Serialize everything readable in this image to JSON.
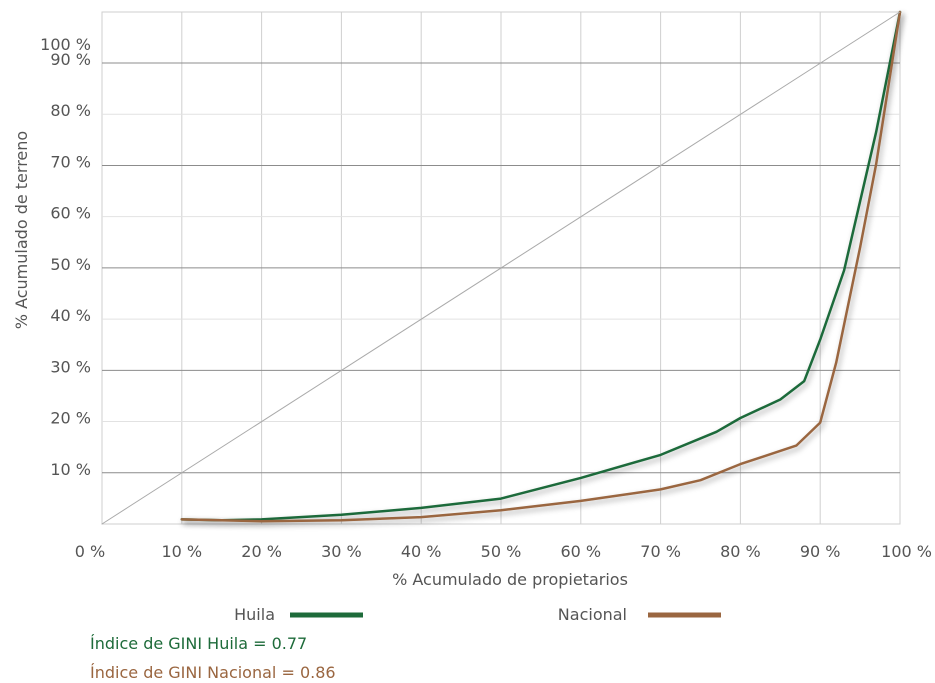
{
  "chart_data": {
    "type": "line",
    "xlabel": "% Acumulado de propietarios",
    "ylabel": "% Acumulado de terreno",
    "x_ticks": [
      "0 %",
      "10 %",
      "20 %",
      "30 %",
      "40 %",
      "50 %",
      "60 %",
      "70 %",
      "80 %",
      "90 %",
      "100 %"
    ],
    "y_ticks": [
      "10 %",
      "20 %",
      "30 %",
      "40 %",
      "50 %",
      "60 %",
      "70 %",
      "80 %",
      "90 %",
      "100 %"
    ],
    "xlim": [
      0,
      100
    ],
    "ylim": [
      0,
      100
    ],
    "grid": true,
    "legend_position": "bottom",
    "series": [
      {
        "name": "Huila",
        "color": "#1e6b3a",
        "x": [
          10,
          15,
          20,
          30,
          40,
          50,
          60,
          70,
          77,
          80,
          85,
          88,
          90,
          93,
          95,
          97,
          100
        ],
        "y": [
          1,
          0.8,
          1,
          2,
          3.5,
          5.5,
          10,
          15,
          20,
          23,
          27,
          31,
          40,
          55,
          70,
          85,
          100
        ]
      },
      {
        "name": "Nacional",
        "color": "#9a6640",
        "x": [
          10,
          15,
          20,
          30,
          40,
          50,
          60,
          70,
          75,
          80,
          87,
          90,
          92,
          95,
          97,
          100
        ],
        "y": [
          1,
          0.8,
          0.6,
          0.8,
          1.5,
          3,
          5,
          7.5,
          9.5,
          13,
          17,
          22,
          35,
          60,
          78,
          100
        ]
      },
      {
        "name": "",
        "color": "#aaaaaa",
        "x": [
          0,
          100
        ],
        "y": [
          0,
          100
        ]
      }
    ]
  },
  "gini": {
    "huila": "Índice de GINI Huila = 0.77",
    "huila_color": "#1e6b3a",
    "nacional": "Índice de GINI Nacional = 0.86",
    "nacional_color": "#9a6640"
  }
}
